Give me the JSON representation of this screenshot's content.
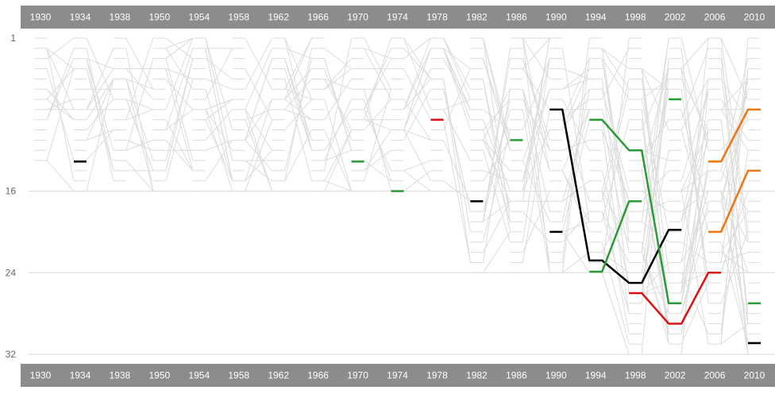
{
  "colors": {
    "bar_bg": "#8c8c8c",
    "bar_text": "#ffffff",
    "grid": "#d9d9d9",
    "background_line": "#dcdcdc",
    "tick_label": "#666666",
    "black": "#000000",
    "green": "#2a9b34",
    "red": "#dd1111",
    "orange": "#ee7711"
  },
  "chart_data": {
    "type": "line",
    "title": "",
    "xlabel": "",
    "ylabel": "",
    "x": [
      1930,
      1934,
      1938,
      1950,
      1954,
      1958,
      1962,
      1966,
      1970,
      1974,
      1978,
      1982,
      1986,
      1990,
      1994,
      1998,
      2002,
      2006,
      2010
    ],
    "x_tick_labels": [
      "1930",
      "1934",
      "1938",
      "1950",
      "1954",
      "1958",
      "1962",
      "1966",
      "1970",
      "1974",
      "1978",
      "1982",
      "1986",
      "1990",
      "1994",
      "1998",
      "2002",
      "2006",
      "2010"
    ],
    "y_tick_labels": [
      "1",
      "16",
      "24",
      "32"
    ],
    "y_ticks": [
      1,
      16,
      24,
      32
    ],
    "ylim": [
      1,
      32
    ],
    "y_inverted": true,
    "x_axis_position": "top-and-bottom",
    "grid": true,
    "background_slots": [
      13,
      16,
      15,
      16,
      16,
      16,
      16,
      16,
      16,
      16,
      16,
      24,
      24,
      24,
      24,
      32,
      32,
      32,
      32
    ],
    "highlighted_series": [
      {
        "color_key": "black",
        "values": [
          null,
          13.1,
          null,
          null,
          null,
          null,
          null,
          null,
          null,
          null,
          null,
          null,
          null,
          null,
          null,
          null,
          null,
          null,
          null
        ]
      },
      {
        "color_key": "black",
        "values": [
          null,
          null,
          null,
          null,
          null,
          null,
          null,
          null,
          null,
          null,
          null,
          17.0,
          null,
          null,
          null,
          null,
          null,
          null,
          null
        ]
      },
      {
        "color_key": "black",
        "values": [
          null,
          null,
          null,
          null,
          null,
          null,
          null,
          null,
          null,
          null,
          null,
          null,
          null,
          20.0,
          null,
          null,
          null,
          null,
          null
        ]
      },
      {
        "color_key": "black",
        "values": [
          null,
          null,
          null,
          null,
          null,
          null,
          null,
          null,
          null,
          null,
          null,
          null,
          null,
          8.0,
          22.8,
          25.0,
          19.8,
          null,
          null
        ]
      },
      {
        "color_key": "black",
        "values": [
          null,
          null,
          null,
          null,
          null,
          null,
          null,
          null,
          null,
          null,
          null,
          null,
          null,
          null,
          null,
          null,
          null,
          null,
          30.9
        ]
      },
      {
        "color_key": "green",
        "values": [
          null,
          null,
          null,
          null,
          null,
          null,
          null,
          null,
          null,
          16.0,
          null,
          null,
          null,
          null,
          null,
          null,
          null,
          null,
          null
        ]
      },
      {
        "color_key": "green",
        "values": [
          null,
          null,
          null,
          null,
          null,
          null,
          null,
          null,
          13.1,
          null,
          null,
          null,
          null,
          null,
          null,
          null,
          null,
          null,
          null
        ]
      },
      {
        "color_key": "green",
        "values": [
          null,
          null,
          null,
          null,
          null,
          null,
          null,
          null,
          null,
          null,
          null,
          null,
          11.0,
          null,
          null,
          null,
          null,
          null,
          null
        ]
      },
      {
        "color_key": "green",
        "values": [
          null,
          null,
          null,
          null,
          null,
          null,
          null,
          null,
          null,
          null,
          null,
          null,
          null,
          null,
          9.0,
          12.0,
          27.0,
          null,
          null
        ]
      },
      {
        "color_key": "green",
        "values": [
          null,
          null,
          null,
          null,
          null,
          null,
          null,
          null,
          null,
          null,
          null,
          null,
          null,
          null,
          23.9,
          17.0,
          null,
          null,
          null
        ]
      },
      {
        "color_key": "green",
        "values": [
          null,
          null,
          null,
          null,
          null,
          null,
          null,
          null,
          null,
          null,
          null,
          null,
          null,
          null,
          null,
          null,
          7.0,
          null,
          null
        ]
      },
      {
        "color_key": "green",
        "values": [
          null,
          null,
          null,
          null,
          null,
          null,
          null,
          null,
          null,
          null,
          null,
          null,
          null,
          null,
          null,
          null,
          null,
          null,
          27.0
        ]
      },
      {
        "color_key": "red",
        "values": [
          null,
          null,
          null,
          null,
          null,
          null,
          null,
          null,
          null,
          null,
          9.0,
          null,
          null,
          null,
          null,
          null,
          null,
          null,
          null
        ]
      },
      {
        "color_key": "red",
        "values": [
          null,
          null,
          null,
          null,
          null,
          null,
          null,
          null,
          null,
          null,
          null,
          null,
          null,
          null,
          null,
          26.0,
          29.0,
          24.0,
          null
        ]
      },
      {
        "color_key": "orange",
        "values": [
          null,
          null,
          null,
          null,
          null,
          null,
          null,
          null,
          null,
          null,
          null,
          null,
          null,
          null,
          null,
          null,
          null,
          13.1,
          8.0
        ]
      },
      {
        "color_key": "orange",
        "values": [
          null,
          null,
          null,
          null,
          null,
          null,
          null,
          null,
          null,
          null,
          null,
          null,
          null,
          null,
          null,
          null,
          null,
          20.0,
          14.0
        ]
      }
    ]
  }
}
